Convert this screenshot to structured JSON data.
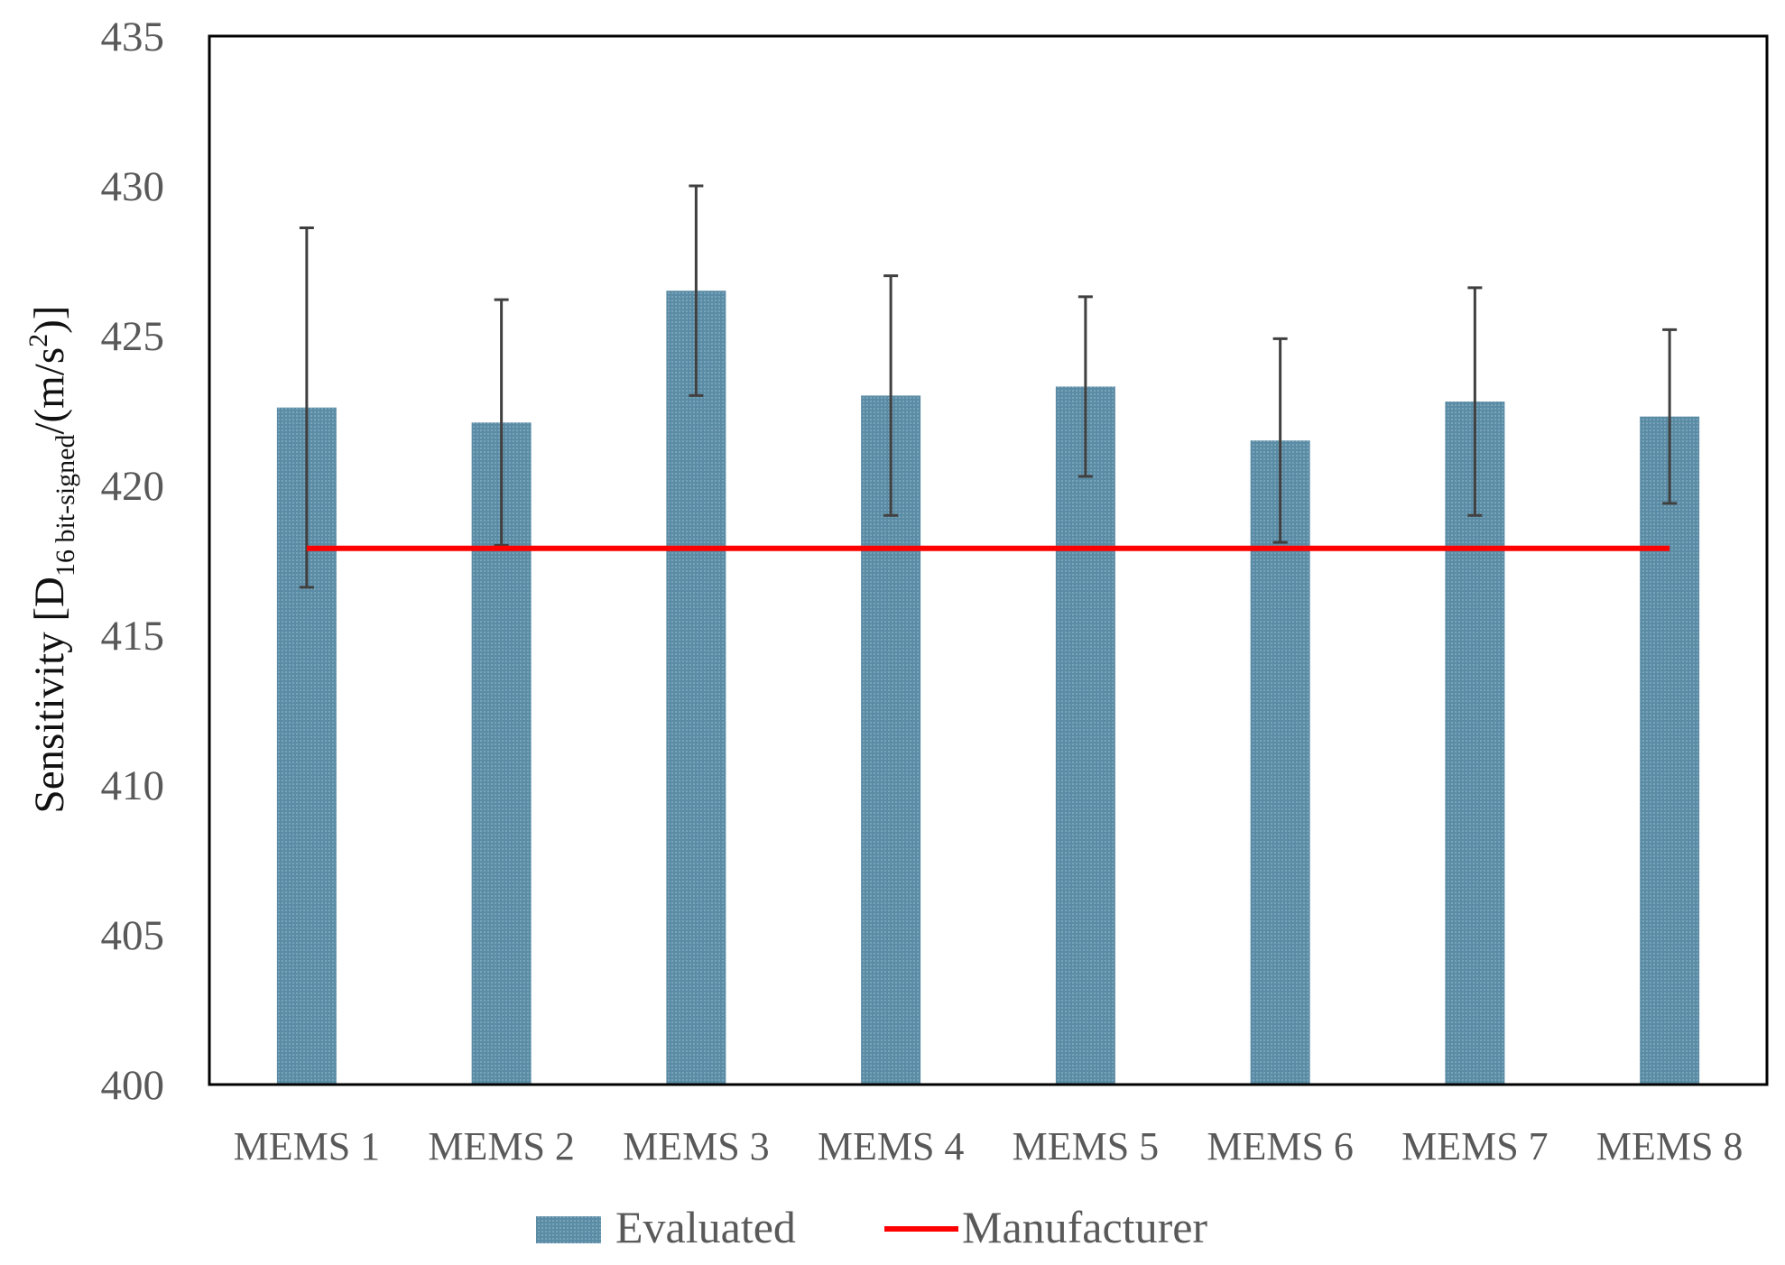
{
  "chart_data": {
    "type": "bar",
    "categories": [
      "MEMS 1",
      "MEMS 2",
      "MEMS 3",
      "MEMS 4",
      "MEMS 5",
      "MEMS 6",
      "MEMS 7",
      "MEMS 8"
    ],
    "series": [
      {
        "name": "Evaluated",
        "type": "bar",
        "values": [
          422.6,
          422.1,
          426.5,
          423.0,
          423.3,
          421.5,
          422.8,
          422.3
        ],
        "error": [
          6.0,
          4.1,
          3.5,
          4.0,
          3.0,
          3.4,
          3.8,
          2.9
        ],
        "color": "#5f8fa8"
      },
      {
        "name": "Manufacturer",
        "type": "line",
        "values": [
          417.9,
          417.9,
          417.9,
          417.9,
          417.9,
          417.9,
          417.9,
          417.9
        ],
        "color": "#ff0000"
      }
    ],
    "ylabel": {
      "prefix": "Sensitivity [D",
      "subscript": "16 bit-signed",
      "middle": "/(m/s",
      "superscript": "2",
      "suffix": ")]"
    },
    "xlabel": "",
    "ylim": [
      400,
      435
    ],
    "yticks": [
      400,
      405,
      410,
      415,
      420,
      425,
      430,
      435
    ],
    "grid": false,
    "legend": "bottom"
  }
}
